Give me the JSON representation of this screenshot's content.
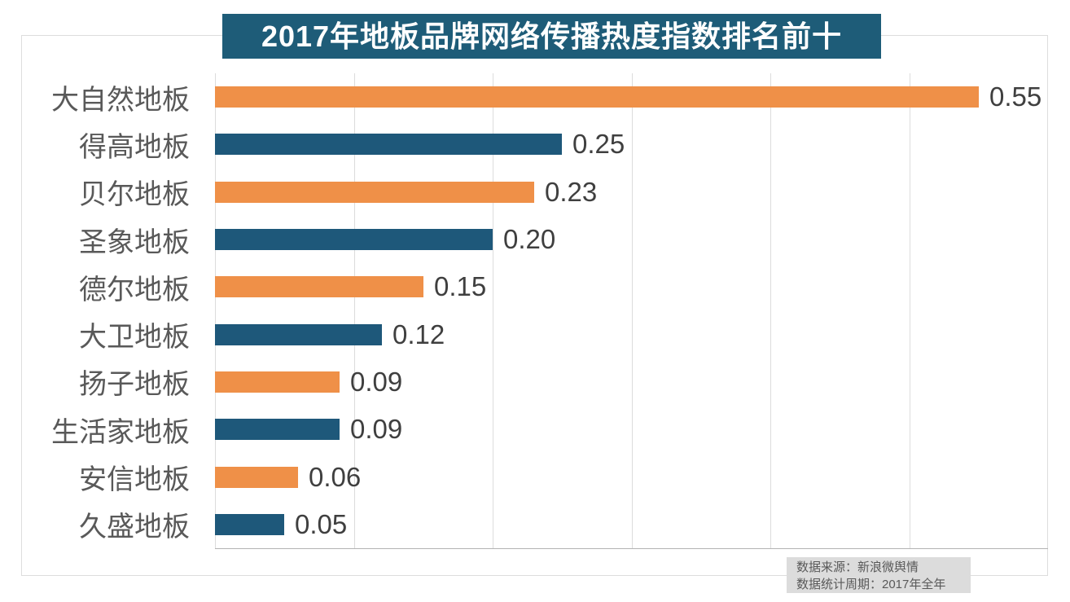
{
  "title": "2017年地板品牌网络传播热度指数排名前十",
  "chart_data": {
    "type": "bar",
    "orientation": "horizontal",
    "title": "2017年地板品牌网络传播热度指数排名前十",
    "categories": [
      "大自然地板",
      "得高地板",
      "贝尔地板",
      "圣象地板",
      "德尔地板",
      "大卫地板",
      "扬子地板",
      "生活家地板",
      "安信地板",
      "久盛地板"
    ],
    "values": [
      0.55,
      0.25,
      0.23,
      0.2,
      0.15,
      0.12,
      0.09,
      0.09,
      0.06,
      0.05
    ],
    "value_labels": [
      "0.55",
      "0.25",
      "0.23",
      "0.20",
      "0.15",
      "0.12",
      "0.09",
      "0.09",
      "0.06",
      "0.05"
    ],
    "xlim": [
      0,
      0.6
    ],
    "grid_step": 0.1,
    "grid": true,
    "legend": false,
    "bar_colors_alternating": [
      "#ef9048",
      "#1e587a"
    ]
  },
  "colors": {
    "title_bg": "#1e5c78",
    "title_text": "#ffffff",
    "orange_bar": "#ef9048",
    "teal_bar": "#1e587a",
    "category_text": "#595959",
    "value_text": "#3f3f3f",
    "gridline": "#dcdcdc",
    "axis_line": "#b4b4b4",
    "frame_border": "#dddddd",
    "footer_bg": "#dcdcdc",
    "footer_text": "#595959"
  },
  "footer": {
    "source_line": "数据来源：新浪微舆情",
    "period_line": "数据统计周期：2017年全年"
  }
}
